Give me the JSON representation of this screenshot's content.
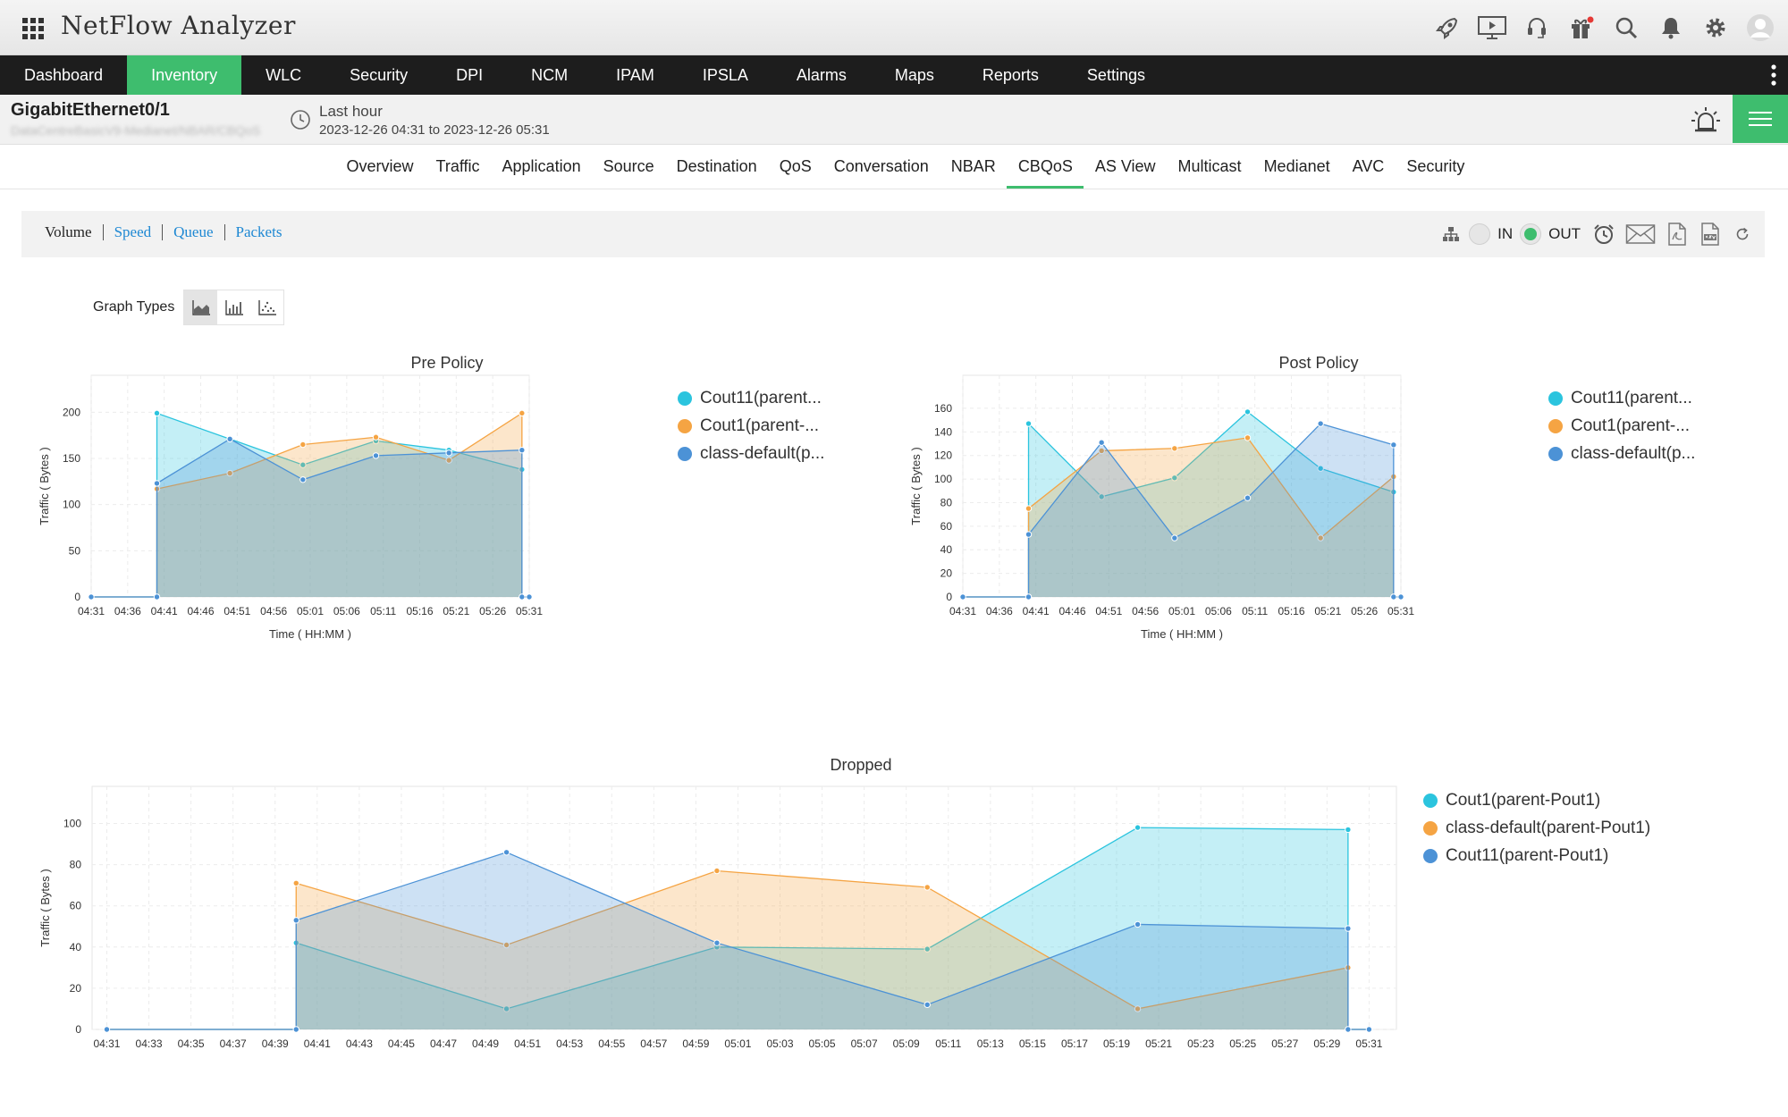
{
  "app": {
    "title": "NetFlow Analyzer"
  },
  "top_icons": [
    "rocket-icon",
    "presentation-icon",
    "headset-icon",
    "gift-icon",
    "search-icon",
    "bell-icon",
    "gear-icon",
    "user-avatar-icon"
  ],
  "nav": {
    "items": [
      "Dashboard",
      "Inventory",
      "WLC",
      "Security",
      "DPI",
      "NCM",
      "IPAM",
      "IPSLA",
      "Alarms",
      "Maps",
      "Reports",
      "Settings"
    ],
    "active": "Inventory"
  },
  "device": {
    "name": "GigabitEthernet0/1",
    "path": "DataCentreBasicV9-Medianet/NBAR/CBQoS",
    "period_label": "Last hour",
    "period_range": "2023-12-26 04:31 to 2023-12-26 05:31"
  },
  "tabs": {
    "items": [
      "Overview",
      "Traffic",
      "Application",
      "Source",
      "Destination",
      "QoS",
      "Conversation",
      "NBAR",
      "CBQoS",
      "AS View",
      "Multicast",
      "Medianet",
      "AVC",
      "Security"
    ],
    "active": "CBQoS"
  },
  "metrics": {
    "items": [
      "Volume",
      "Speed",
      "Queue",
      "Packets"
    ],
    "active": "Volume",
    "in_label": "IN",
    "out_label": "OUT",
    "selected_direction": "OUT"
  },
  "graph_types": {
    "label": "Graph Types",
    "options": [
      "area",
      "bar",
      "scatter"
    ],
    "selected": "area"
  },
  "colors": {
    "cyan": "#2bc4de",
    "orange": "#f5a443",
    "blue": "#4c92d6",
    "accent": "#3ebd6e"
  },
  "chart_data": [
    {
      "type": "area",
      "title": "Pre Policy",
      "xlabel": "Time ( HH:MM )",
      "ylabel": "Traffic ( Bytes )",
      "x": [
        "04:31",
        "04:36",
        "04:41",
        "04:46",
        "04:51",
        "04:56",
        "05:01",
        "05:06",
        "05:11",
        "05:16",
        "05:21",
        "05:26",
        "05:31"
      ],
      "yticks": [
        0,
        50,
        100,
        150,
        200
      ],
      "ylim": [
        0,
        240
      ],
      "xrange": [
        0,
        60
      ],
      "series": [
        {
          "name": "Cout11(parent...",
          "color": "#2bc4de",
          "points": [
            [
              0,
              0
            ],
            [
              9,
              0
            ],
            [
              9,
              199
            ],
            [
              19,
              171
            ],
            [
              29,
              143
            ],
            [
              39,
              169
            ],
            [
              49,
              159
            ],
            [
              59,
              138
            ],
            [
              59,
              0
            ],
            [
              60,
              0
            ]
          ]
        },
        {
          "name": "Cout1(parent-...",
          "color": "#f5a443",
          "points": [
            [
              0,
              0
            ],
            [
              9,
              0
            ],
            [
              9,
              117
            ],
            [
              19,
              134
            ],
            [
              29,
              165
            ],
            [
              39,
              173
            ],
            [
              49,
              148
            ],
            [
              59,
              199
            ],
            [
              59,
              0
            ],
            [
              60,
              0
            ]
          ]
        },
        {
          "name": "class-default(p...",
          "color": "#4c92d6",
          "points": [
            [
              0,
              0
            ],
            [
              9,
              0
            ],
            [
              9,
              123
            ],
            [
              19,
              171
            ],
            [
              29,
              127
            ],
            [
              39,
              153
            ],
            [
              49,
              156
            ],
            [
              59,
              159
            ],
            [
              59,
              0
            ],
            [
              60,
              0
            ]
          ]
        }
      ]
    },
    {
      "type": "area",
      "title": "Post Policy",
      "xlabel": "Time ( HH:MM )",
      "ylabel": "Traffic ( Bytes )",
      "x": [
        "04:31",
        "04:36",
        "04:41",
        "04:46",
        "04:51",
        "04:56",
        "05:01",
        "05:06",
        "05:11",
        "05:16",
        "05:21",
        "05:26",
        "05:31"
      ],
      "yticks": [
        0,
        20,
        40,
        60,
        80,
        100,
        120,
        140,
        160
      ],
      "ylim": [
        0,
        188
      ],
      "xrange": [
        0,
        60
      ],
      "series": [
        {
          "name": "Cout11(parent...",
          "color": "#2bc4de",
          "points": [
            [
              0,
              0
            ],
            [
              9,
              0
            ],
            [
              9,
              147
            ],
            [
              19,
              85
            ],
            [
              29,
              101
            ],
            [
              39,
              157
            ],
            [
              49,
              109
            ],
            [
              59,
              89
            ],
            [
              59,
              0
            ],
            [
              60,
              0
            ]
          ]
        },
        {
          "name": "Cout1(parent-...",
          "color": "#f5a443",
          "points": [
            [
              0,
              0
            ],
            [
              9,
              0
            ],
            [
              9,
              75
            ],
            [
              19,
              124
            ],
            [
              29,
              126
            ],
            [
              39,
              135
            ],
            [
              49,
              50
            ],
            [
              59,
              102
            ],
            [
              59,
              0
            ],
            [
              60,
              0
            ]
          ]
        },
        {
          "name": "class-default(p...",
          "color": "#4c92d6",
          "points": [
            [
              0,
              0
            ],
            [
              9,
              0
            ],
            [
              9,
              53
            ],
            [
              19,
              131
            ],
            [
              29,
              50
            ],
            [
              39,
              84
            ],
            [
              49,
              147
            ],
            [
              59,
              129
            ],
            [
              59,
              0
            ],
            [
              60,
              0
            ]
          ]
        }
      ]
    },
    {
      "type": "area",
      "title": "Dropped",
      "xlabel": "",
      "ylabel": "Traffic ( Bytes )",
      "x": [
        "04:31",
        "04:33",
        "04:35",
        "04:37",
        "04:39",
        "04:41",
        "04:43",
        "04:45",
        "04:47",
        "04:49",
        "04:51",
        "04:53",
        "04:55",
        "04:57",
        "04:59",
        "05:01",
        "05:03",
        "05:05",
        "05:07",
        "05:09",
        "05:11",
        "05:13",
        "05:15",
        "05:17",
        "05:19",
        "05:21",
        "05:23",
        "05:25",
        "05:27",
        "05:29",
        "05:31"
      ],
      "yticks": [
        0,
        20,
        40,
        60,
        80,
        100
      ],
      "ylim": [
        0,
        118
      ],
      "xrange": [
        -0.7,
        61.3
      ],
      "series": [
        {
          "name": "Cout1(parent-Pout1)",
          "color": "#2bc4de",
          "points": [
            [
              0,
              0
            ],
            [
              9,
              0
            ],
            [
              9,
              42
            ],
            [
              19,
              10
            ],
            [
              29,
              40
            ],
            [
              39,
              39
            ],
            [
              49,
              98
            ],
            [
              59,
              97
            ],
            [
              59,
              0
            ],
            [
              60,
              0
            ]
          ]
        },
        {
          "name": "class-default(parent-Pout1)",
          "color": "#f5a443",
          "points": [
            [
              0,
              0
            ],
            [
              9,
              0
            ],
            [
              9,
              71
            ],
            [
              19,
              41
            ],
            [
              29,
              77
            ],
            [
              39,
              69
            ],
            [
              49,
              10
            ],
            [
              59,
              30
            ],
            [
              59,
              0
            ],
            [
              60,
              0
            ]
          ]
        },
        {
          "name": "Cout11(parent-Pout1)",
          "color": "#4c92d6",
          "points": [
            [
              0,
              0
            ],
            [
              9,
              0
            ],
            [
              9,
              53
            ],
            [
              19,
              86
            ],
            [
              29,
              42
            ],
            [
              39,
              12
            ],
            [
              49,
              51
            ],
            [
              59,
              49
            ],
            [
              59,
              0
            ],
            [
              60,
              0
            ]
          ]
        }
      ]
    }
  ]
}
